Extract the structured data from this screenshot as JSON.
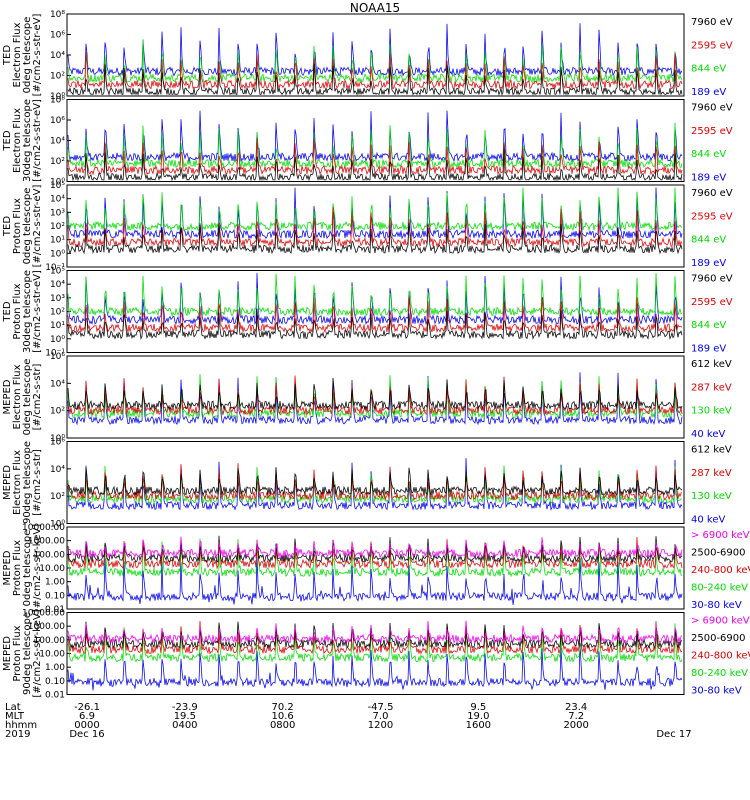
{
  "title": "NOAA15",
  "colors": {
    "black": "#000000",
    "red": "#dd0000",
    "green": "#00dd00",
    "blue": "#0000ee",
    "magenta": "#ee00ee"
  },
  "chart_data": [
    {
      "type": "line",
      "ylabel": [
        "TED",
        "Electron Flux",
        "0deg telescope",
        "[#/cm2-s-str-eV]"
      ],
      "scale": "log",
      "ylim": [
        1,
        100000000
      ],
      "yticks": [
        "10⁰",
        "10²",
        "10⁴",
        "10⁶",
        "10⁸"
      ],
      "grid": false,
      "legend": [
        {
          "name": "7960 eV",
          "color": "#000000"
        },
        {
          "name": "2595 eV",
          "color": "#dd0000"
        },
        {
          "name": "844 eV",
          "color": "#00dd00"
        },
        {
          "name": "189 eV",
          "color": "#0000ee"
        }
      ]
    },
    {
      "type": "line",
      "ylabel": [
        "TED",
        "Electron Flux",
        "30deg telescope",
        "[#/cm2-s-str-eV]"
      ],
      "scale": "log",
      "ylim": [
        1,
        100000000
      ],
      "yticks": [
        "10⁰",
        "10²",
        "10⁴",
        "10⁶",
        "10⁸"
      ],
      "grid": false,
      "legend": [
        {
          "name": "7960 eV",
          "color": "#000000"
        },
        {
          "name": "2595 eV",
          "color": "#dd0000"
        },
        {
          "name": "844 eV",
          "color": "#00dd00"
        },
        {
          "name": "189 eV",
          "color": "#0000ee"
        }
      ]
    },
    {
      "type": "line",
      "ylabel": [
        "TED",
        "Proton Flux",
        "0deg telescope",
        "[#/cm2-s-str-eV]"
      ],
      "scale": "log",
      "ylim": [
        0.1,
        100000
      ],
      "yticks": [
        "10⁻¹",
        "10⁰",
        "10¹",
        "10²",
        "10³",
        "10⁴",
        "10⁵"
      ],
      "grid": false,
      "legend": [
        {
          "name": "7960 eV",
          "color": "#000000"
        },
        {
          "name": "2595 eV",
          "color": "#dd0000"
        },
        {
          "name": "844 eV",
          "color": "#00dd00"
        },
        {
          "name": "189 eV",
          "color": "#0000ee"
        }
      ]
    },
    {
      "type": "line",
      "ylabel": [
        "TED",
        "Proton Flux",
        "30deg telescope",
        "[#/cm2-s-str-eV]"
      ],
      "scale": "log",
      "ylim": [
        0.1,
        100000
      ],
      "yticks": [
        "10⁻¹",
        "10⁰",
        "10¹",
        "10²",
        "10³",
        "10⁴",
        "10⁵"
      ],
      "grid": false,
      "legend": [
        {
          "name": "7960 eV",
          "color": "#000000"
        },
        {
          "name": "2595 eV",
          "color": "#dd0000"
        },
        {
          "name": "844 eV",
          "color": "#00dd00"
        },
        {
          "name": "189 eV",
          "color": "#0000ee"
        }
      ]
    },
    {
      "type": "line",
      "ylabel": [
        "MEPED",
        "Electron Flux",
        "0deg telescope",
        "[#/cm2-s-str]"
      ],
      "scale": "log",
      "ylim": [
        1,
        1000000
      ],
      "yticks": [
        "10⁰",
        "10²",
        "10⁴",
        "10⁶"
      ],
      "grid": false,
      "legend": [
        {
          "name": "612 keV",
          "color": "#000000"
        },
        {
          "name": "287 keV",
          "color": "#dd0000"
        },
        {
          "name": "130 keV",
          "color": "#00dd00"
        },
        {
          "name": "40 keV",
          "color": "#0000ee"
        }
      ]
    },
    {
      "type": "line",
      "ylabel": [
        "MEPED",
        "Electron Flux",
        "90deg telescope",
        "[#/cm2-s-str]"
      ],
      "scale": "log",
      "ylim": [
        1,
        1000000
      ],
      "yticks": [
        "10⁰",
        "10²",
        "10⁴",
        "10⁶"
      ],
      "grid": false,
      "legend": [
        {
          "name": "612 keV",
          "color": "#000000"
        },
        {
          "name": "287 keV",
          "color": "#dd0000"
        },
        {
          "name": "130 keV",
          "color": "#00dd00"
        },
        {
          "name": "40 keV",
          "color": "#0000ee"
        }
      ]
    },
    {
      "type": "line",
      "ylabel": [
        "MEPED",
        "Proton Flux",
        "0deg telescope",
        "[#/cm2-s-str-keV]"
      ],
      "scale": "log",
      "ylim": [
        0.01,
        10000
      ],
      "yticks": [
        "0.01",
        "0.10",
        "1.00",
        "10.00",
        "100.00",
        "1000.00",
        "10000.00"
      ],
      "grid": false,
      "legend": [
        {
          "name": "> 6900 keV",
          "color": "#ee00ee"
        },
        {
          "name": "2500-6900",
          "color": "#000000"
        },
        {
          "name": "240-800 keV",
          "color": "#dd0000"
        },
        {
          "name": "80-240 keV",
          "color": "#00dd00"
        },
        {
          "name": "30-80 keV",
          "color": "#0000ee"
        }
      ]
    },
    {
      "type": "line",
      "ylabel": [
        "MEPED",
        "Proton Flux",
        "90deg telescope",
        "[#/cm2-s-str-keV]"
      ],
      "scale": "log",
      "ylim": [
        0.01,
        10000
      ],
      "yticks": [
        "0.01",
        "0.10",
        "1.00",
        "10.00",
        "100.00",
        "1000.00",
        "10000.00"
      ],
      "grid": false,
      "legend": [
        {
          "name": "> 6900 keV",
          "color": "#ee00ee"
        },
        {
          "name": "2500-6900",
          "color": "#000000"
        },
        {
          "name": "240-800 keV",
          "color": "#dd0000"
        },
        {
          "name": "80-240 keV",
          "color": "#00dd00"
        },
        {
          "name": "30-80 keV",
          "color": "#0000ee"
        }
      ]
    }
  ],
  "x_axis": {
    "row_labels": [
      "Lat",
      "MLT",
      "hhmm",
      "2019"
    ],
    "ticks": [
      {
        "lat": "-26.1",
        "mlt": "6.9",
        "hhmm": "0000",
        "date": "Dec 16"
      },
      {
        "lat": "-23.9",
        "mlt": "19.5",
        "hhmm": "0400",
        "date": ""
      },
      {
        "lat": "70.2",
        "mlt": "10.6",
        "hhmm": "0800",
        "date": ""
      },
      {
        "lat": "-47.5",
        "mlt": "7.0",
        "hhmm": "1200",
        "date": ""
      },
      {
        "lat": "9.5",
        "mlt": "19.0",
        "hhmm": "1600",
        "date": ""
      },
      {
        "lat": "23.4",
        "mlt": "7.2",
        "hhmm": "2000",
        "date": ""
      },
      {
        "lat": "",
        "mlt": "",
        "hhmm": "",
        "date": "Dec 17"
      }
    ]
  }
}
